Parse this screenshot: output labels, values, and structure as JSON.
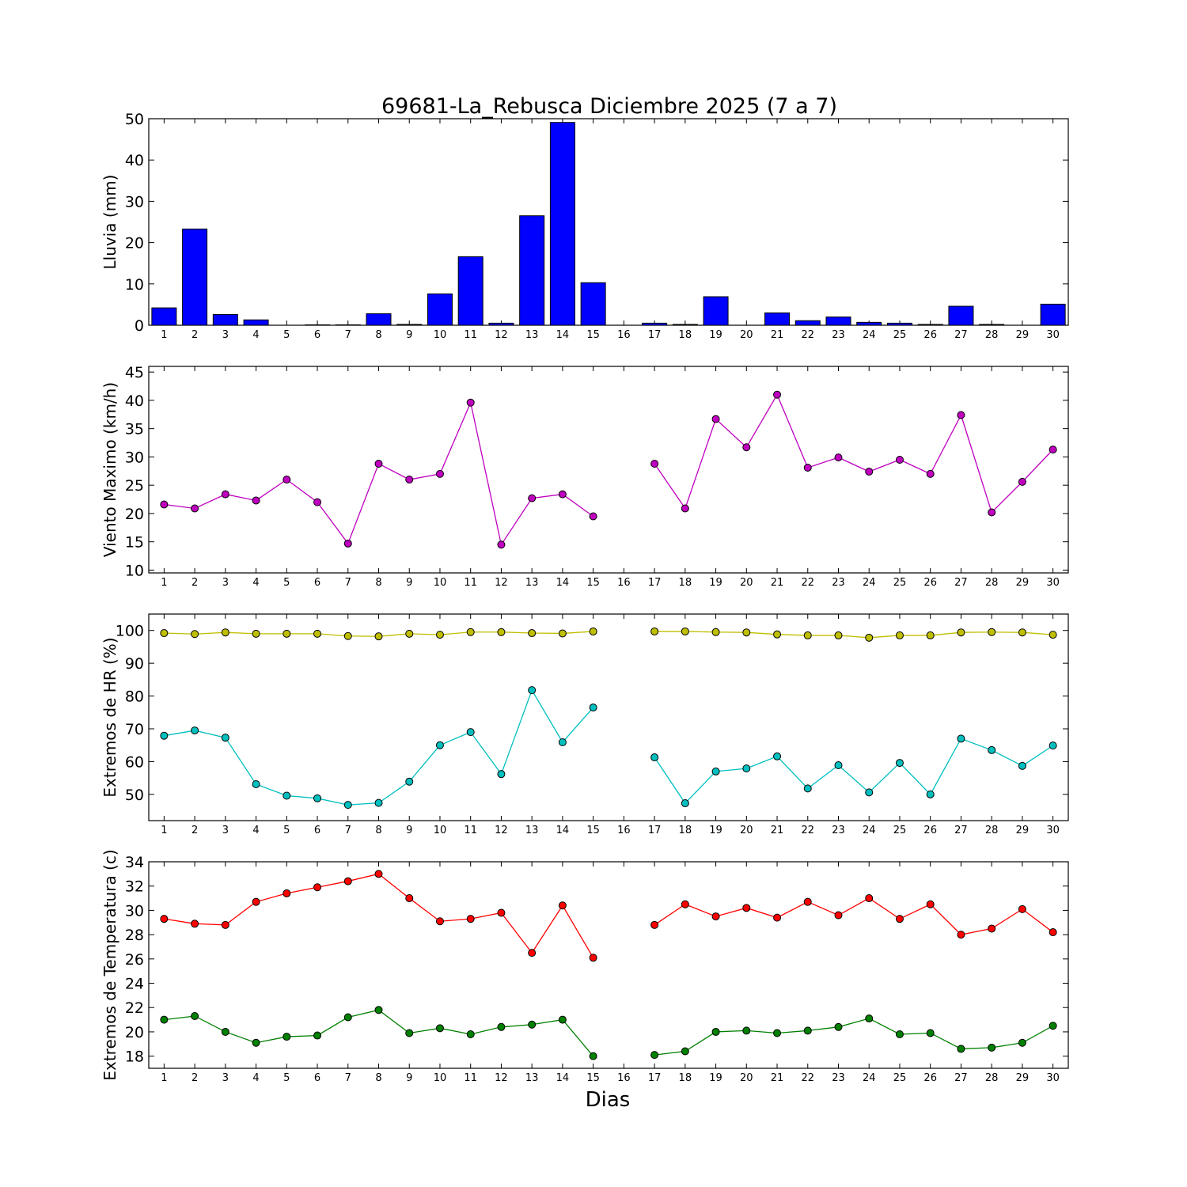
{
  "title": "69681-La_Rebusca Diciembre 2025  (7 a 7)",
  "xlabel": "Dias",
  "colors": {
    "rain": "#0000ff",
    "wind": "#bf00bf",
    "hr_max": "#bfbf00",
    "hr_min": "#00bfbf",
    "temp_max": "#ff0000",
    "temp_min": "#008000"
  },
  "chart_data": [
    {
      "type": "bar",
      "ylabel": "Lluvia (mm)",
      "ylim": [
        0,
        50
      ],
      "yticks": [
        0,
        10,
        20,
        30,
        40,
        50
      ],
      "categories": [
        "1",
        "2",
        "3",
        "4",
        "5",
        "6",
        "7",
        "8",
        "9",
        "10",
        "11",
        "12",
        "13",
        "14",
        "15",
        "16",
        "17",
        "18",
        "19",
        "20",
        "21",
        "22",
        "23",
        "24",
        "25",
        "26",
        "27",
        "28",
        "29",
        "30"
      ],
      "series": [
        {
          "values": [
            4.2,
            23.3,
            2.6,
            1.3,
            0.0,
            0.1,
            0.1,
            2.8,
            0.2,
            7.6,
            16.6,
            0.5,
            26.5,
            49.1,
            10.3,
            0.0,
            0.5,
            0.2,
            6.9,
            0.0,
            3.0,
            1.1,
            2.0,
            0.7,
            0.5,
            0.2,
            4.6,
            0.2,
            0.0,
            5.1
          ]
        }
      ]
    },
    {
      "type": "line",
      "ylabel": "Viento Maximo (km/h)",
      "ylim": [
        9.5,
        46
      ],
      "yticks": [
        10,
        15,
        20,
        25,
        30,
        35,
        40,
        45
      ],
      "categories": [
        "1",
        "2",
        "3",
        "4",
        "5",
        "6",
        "7",
        "8",
        "9",
        "10",
        "11",
        "12",
        "13",
        "14",
        "15",
        "16",
        "17",
        "18",
        "19",
        "20",
        "21",
        "22",
        "23",
        "24",
        "25",
        "26",
        "27",
        "28",
        "29",
        "30"
      ],
      "series": [
        {
          "values": [
            21.6,
            20.9,
            23.4,
            22.3,
            26.0,
            22.0,
            14.7,
            28.8,
            26.0,
            27.0,
            39.6,
            14.5,
            22.7,
            23.4,
            19.5,
            null,
            28.8,
            20.9,
            36.7,
            31.7,
            41.0,
            28.1,
            29.9,
            27.4,
            29.5,
            27.0,
            37.4,
            20.2,
            25.6,
            31.3
          ]
        }
      ]
    },
    {
      "type": "line",
      "ylabel": "Extremos de HR (%)",
      "ylim": [
        42,
        105
      ],
      "yticks": [
        50,
        60,
        70,
        80,
        90,
        100
      ],
      "categories": [
        "1",
        "2",
        "3",
        "4",
        "5",
        "6",
        "7",
        "8",
        "9",
        "10",
        "11",
        "12",
        "13",
        "14",
        "15",
        "16",
        "17",
        "18",
        "19",
        "20",
        "21",
        "22",
        "23",
        "24",
        "25",
        "26",
        "27",
        "28",
        "29",
        "30"
      ],
      "series": [
        {
          "values": [
            99.2,
            98.9,
            99.4,
            99.0,
            99.0,
            99.0,
            98.3,
            98.2,
            99.0,
            98.7,
            99.5,
            99.5,
            99.2,
            99.1,
            99.7,
            null,
            99.7,
            99.7,
            99.5,
            99.4,
            98.8,
            98.5,
            98.5,
            97.8,
            98.5,
            98.5,
            99.4,
            99.5,
            99.4,
            98.7
          ]
        },
        {
          "values": [
            67.9,
            69.5,
            67.3,
            53.1,
            49.6,
            48.8,
            46.8,
            47.4,
            53.9,
            65.0,
            69.0,
            56.2,
            81.8,
            65.9,
            76.5,
            null,
            61.3,
            47.3,
            57.0,
            57.9,
            61.6,
            51.8,
            58.9,
            50.6,
            59.6,
            50.0,
            67.0,
            63.5,
            58.7,
            64.9
          ]
        }
      ]
    },
    {
      "type": "line",
      "ylabel": "Extremos de Temperatura (c)",
      "ylim": [
        17,
        34
      ],
      "yticks": [
        18,
        20,
        22,
        24,
        26,
        28,
        30,
        32,
        34
      ],
      "categories": [
        "1",
        "2",
        "3",
        "4",
        "5",
        "6",
        "7",
        "8",
        "9",
        "10",
        "11",
        "12",
        "13",
        "14",
        "15",
        "16",
        "17",
        "18",
        "19",
        "20",
        "21",
        "22",
        "23",
        "24",
        "25",
        "26",
        "27",
        "28",
        "29",
        "30"
      ],
      "series": [
        {
          "values": [
            29.3,
            28.9,
            28.8,
            30.7,
            31.4,
            31.9,
            32.4,
            33.0,
            31.0,
            29.1,
            29.3,
            29.8,
            26.5,
            30.4,
            26.1,
            null,
            28.8,
            30.5,
            29.5,
            30.2,
            29.4,
            30.7,
            29.6,
            31.0,
            29.3,
            30.5,
            28.0,
            28.5,
            30.1,
            28.2
          ]
        },
        {
          "values": [
            21.0,
            21.3,
            20.0,
            19.1,
            19.6,
            19.7,
            21.2,
            21.8,
            19.9,
            20.3,
            19.8,
            20.4,
            20.6,
            21.0,
            18.0,
            null,
            18.1,
            18.4,
            20.0,
            20.1,
            19.9,
            20.1,
            20.4,
            21.1,
            19.8,
            19.9,
            18.6,
            18.7,
            19.1,
            20.5
          ]
        }
      ]
    }
  ]
}
